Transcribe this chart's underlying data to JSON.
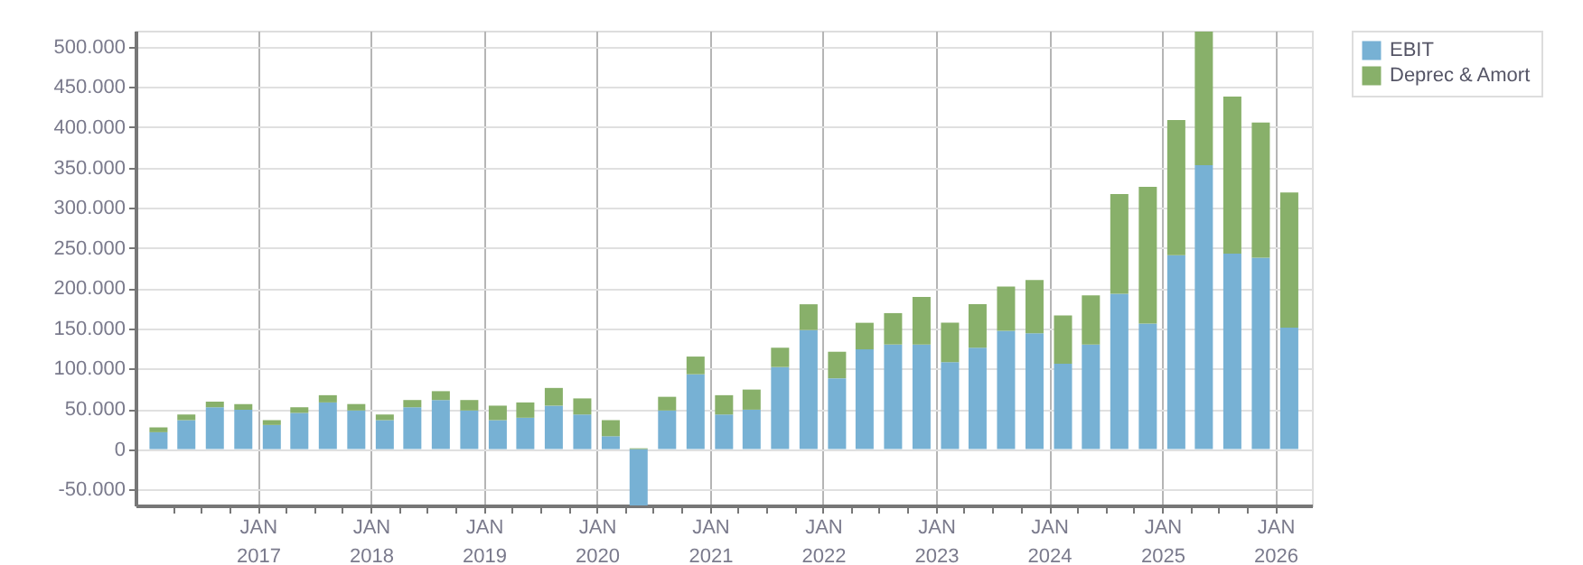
{
  "chart_data": {
    "type": "bar",
    "stacked": true,
    "legend": "top right",
    "grid": true,
    "x": [
      "2016-02-15",
      "2016-05-15",
      "2016-08-15",
      "2016-11-15",
      "2017-02-15",
      "2017-05-15",
      "2017-08-15",
      "2017-11-15",
      "2018-02-15",
      "2018-05-15",
      "2018-08-15",
      "2018-11-15",
      "2019-02-15",
      "2019-05-15",
      "2019-08-15",
      "2019-11-15",
      "2020-02-15",
      "2020-05-15",
      "2020-08-15",
      "2020-11-15",
      "2021-02-15",
      "2021-05-15",
      "2021-08-15",
      "2021-11-15",
      "2022-02-15",
      "2022-05-15",
      "2022-08-15",
      "2022-11-15",
      "2023-02-15",
      "2023-05-15",
      "2023-08-15",
      "2023-11-15",
      "2024-02-15",
      "2024-05-15",
      "2024-08-15",
      "2024-11-15",
      "2025-02-15",
      "2025-05-15",
      "2025-08-15",
      "2025-11-15",
      "2026-02-15"
    ],
    "series": [
      {
        "name": "EBIT",
        "color": "#77b1d4",
        "values": [
          21000,
          36000,
          52000,
          49000,
          30000,
          45000,
          58000,
          48000,
          36000,
          52000,
          61000,
          48000,
          36000,
          39000,
          54000,
          43000,
          16000,
          -70000,
          48000,
          93000,
          43000,
          49000,
          102000,
          148000,
          88000,
          124000,
          130000,
          130000,
          108000,
          126000,
          147000,
          144000,
          106000,
          130000,
          193000,
          156000,
          241000,
          353000,
          243000,
          238000,
          151000
        ]
      },
      {
        "name": "Deprec & Amort",
        "color": "#88b06a",
        "values": [
          6000,
          7000,
          7000,
          7000,
          6000,
          7000,
          9000,
          8000,
          7000,
          9000,
          11000,
          13000,
          18000,
          19000,
          22000,
          20000,
          20000,
          1000,
          17000,
          22000,
          24000,
          25000,
          24000,
          32000,
          33000,
          33000,
          39000,
          59000,
          49000,
          54000,
          55000,
          66000,
          60000,
          61000,
          124000,
          170000,
          168000,
          166000,
          195000,
          168000,
          168000
        ]
      }
    ],
    "xlim": [
      "2016-01-01",
      "2026-03-31"
    ],
    "xticks": [
      {
        "value": "2016-04-01",
        "label": null
      },
      {
        "value": "2016-07-01",
        "label": null
      },
      {
        "value": "2016-10-01",
        "label": null
      },
      {
        "value": "2017-01-01",
        "label": "JAN 2017"
      },
      {
        "value": "2017-04-01",
        "label": null
      },
      {
        "value": "2017-07-01",
        "label": null
      },
      {
        "value": "2017-10-01",
        "label": null
      },
      {
        "value": "2018-01-01",
        "label": "JAN 2018"
      },
      {
        "value": "2018-04-01",
        "label": null
      },
      {
        "value": "2018-07-01",
        "label": null
      },
      {
        "value": "2018-10-01",
        "label": null
      },
      {
        "value": "2019-01-01",
        "label": "JAN 2019"
      },
      {
        "value": "2019-04-01",
        "label": null
      },
      {
        "value": "2019-07-01",
        "label": null
      },
      {
        "value": "2019-10-01",
        "label": null
      },
      {
        "value": "2020-01-01",
        "label": "JAN 2020"
      },
      {
        "value": "2020-04-01",
        "label": null
      },
      {
        "value": "2020-07-01",
        "label": null
      },
      {
        "value": "2020-10-01",
        "label": null
      },
      {
        "value": "2021-01-01",
        "label": "JAN 2021"
      },
      {
        "value": "2021-04-01",
        "label": null
      },
      {
        "value": "2021-07-01",
        "label": null
      },
      {
        "value": "2021-10-01",
        "label": null
      },
      {
        "value": "2022-01-01",
        "label": "JAN 2022"
      },
      {
        "value": "2022-04-01",
        "label": null
      },
      {
        "value": "2022-07-01",
        "label": null
      },
      {
        "value": "2022-10-01",
        "label": null
      },
      {
        "value": "2023-01-01",
        "label": "JAN 2023"
      },
      {
        "value": "2023-04-01",
        "label": null
      },
      {
        "value": "2023-07-01",
        "label": null
      },
      {
        "value": "2023-10-01",
        "label": null
      },
      {
        "value": "2024-01-01",
        "label": "JAN 2024"
      },
      {
        "value": "2024-04-01",
        "label": null
      },
      {
        "value": "2024-07-01",
        "label": null
      },
      {
        "value": "2024-10-01",
        "label": null
      },
      {
        "value": "2025-01-01",
        "label": "JAN 2025"
      },
      {
        "value": "2025-04-01",
        "label": null
      },
      {
        "value": "2025-07-01",
        "label": null
      },
      {
        "value": "2025-10-01",
        "label": null
      },
      {
        "value": "2026-01-01",
        "label": "JAN 2026"
      }
    ],
    "ylim": [
      -70000,
      520000
    ],
    "yticks": [
      {
        "value": -50000,
        "label": "-50.000"
      },
      {
        "value": 0,
        "label": "0"
      },
      {
        "value": 50000,
        "label": "50.000"
      },
      {
        "value": 100000,
        "label": "100.000"
      },
      {
        "value": 150000,
        "label": "150.000"
      },
      {
        "value": 200000,
        "label": "200.000"
      },
      {
        "value": 250000,
        "label": "250.000"
      },
      {
        "value": 300000,
        "label": "300.000"
      },
      {
        "value": 350000,
        "label": "350.000"
      },
      {
        "value": 400000,
        "label": "400.000"
      },
      {
        "value": 450000,
        "label": "450.000"
      },
      {
        "value": 500000,
        "label": "500.000"
      }
    ]
  }
}
